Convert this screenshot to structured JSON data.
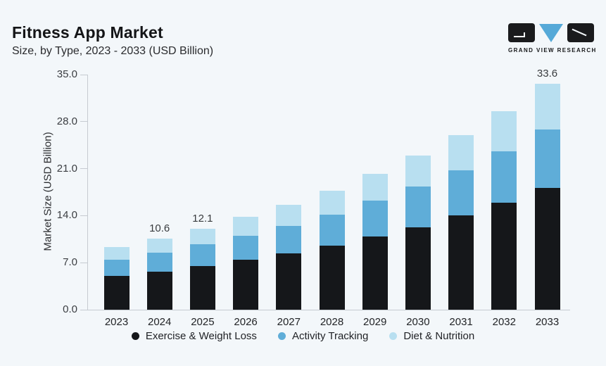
{
  "header": {
    "title": "Fitness App Market",
    "subtitle": "Size, by Type, 2023 - 2033 (USD Billion)"
  },
  "logo": {
    "text": "GRAND VIEW RESEARCH",
    "box_color": "#1a1b1d",
    "triangle_color": "#55a9d8"
  },
  "chart_data": {
    "type": "bar",
    "stacked": true,
    "title": "Fitness App Market",
    "subtitle": "Size, by Type, 2023 - 2033 (USD Billion)",
    "xlabel": "",
    "ylabel": "Market Size (USD Billion)",
    "ylim": [
      0,
      35
    ],
    "yticks": [
      0.0,
      7.0,
      14.0,
      21.0,
      28.0,
      35.0
    ],
    "grid": false,
    "legend_position": "bottom",
    "categories": [
      "2023",
      "2024",
      "2025",
      "2026",
      "2027",
      "2028",
      "2029",
      "2030",
      "2031",
      "2032",
      "2033"
    ],
    "series": [
      {
        "name": "Exercise & Weight Loss",
        "color": "#15171a",
        "values": [
          5.0,
          5.7,
          6.5,
          7.4,
          8.4,
          9.5,
          10.9,
          12.3,
          14.0,
          15.9,
          18.1
        ]
      },
      {
        "name": "Activity Tracking",
        "color": "#5fadd8",
        "values": [
          2.4,
          2.8,
          3.2,
          3.6,
          4.1,
          4.6,
          5.3,
          6.0,
          6.8,
          7.7,
          8.7
        ]
      },
      {
        "name": "Diet & Nutrition",
        "color": "#b8dff0",
        "values": [
          1.9,
          2.1,
          2.4,
          2.8,
          3.1,
          3.6,
          4.0,
          4.6,
          5.2,
          6.0,
          6.8
        ]
      }
    ],
    "totals": [
      9.3,
      10.6,
      12.1,
      13.8,
      15.6,
      17.7,
      20.2,
      22.9,
      26.0,
      29.6,
      33.6
    ],
    "bar_labels": [
      "",
      "10.6",
      "12.1",
      "",
      "",
      "",
      "",
      "",
      "",
      "",
      "33.6"
    ]
  },
  "colors": {
    "background": "#f3f7fa",
    "axis_line": "#c6cbd1"
  }
}
